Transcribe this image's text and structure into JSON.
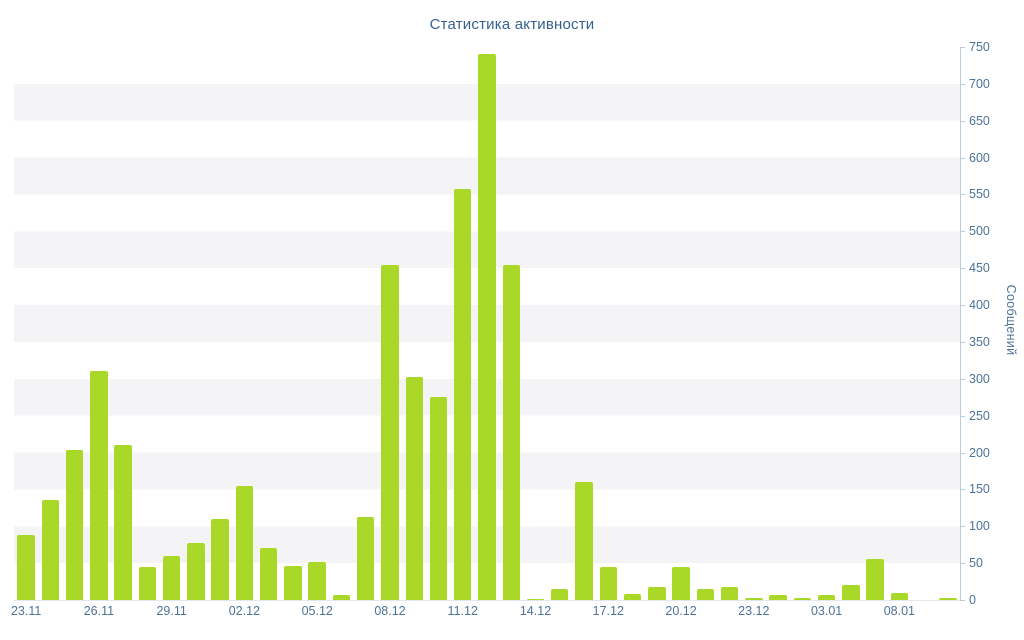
{
  "chart": {
    "title": "Статистика активности",
    "y_axis_title": "Сообщений"
  },
  "chart_data": {
    "type": "bar",
    "title": "Статистика активности",
    "xlabel": "",
    "ylabel": "Сообщений",
    "ylim": [
      0,
      750
    ],
    "y_ticks": [
      0,
      50,
      100,
      150,
      200,
      250,
      300,
      350,
      400,
      450,
      500,
      550,
      600,
      650,
      700,
      750
    ],
    "x_tick_labels": [
      "23.11",
      "26.11",
      "29.11",
      "02.12",
      "05.12",
      "08.12",
      "11.12",
      "14.12",
      "17.12",
      "20.12",
      "23.12",
      "03.01",
      "08.01"
    ],
    "x_tick_every": 3,
    "values": [
      88,
      135,
      203,
      310,
      210,
      45,
      60,
      78,
      110,
      154,
      70,
      46,
      52,
      7,
      112,
      455,
      302,
      275,
      557,
      740,
      455,
      2,
      15,
      160,
      45,
      8,
      18,
      45,
      15,
      18,
      3,
      7,
      3,
      7,
      20,
      55,
      10,
      0,
      3
    ],
    "bar_color": "#a9d829",
    "band_color": "#f4f4f6",
    "grid": "horizontal-bands",
    "legend_position": "none",
    "y_axis_side": "right"
  }
}
